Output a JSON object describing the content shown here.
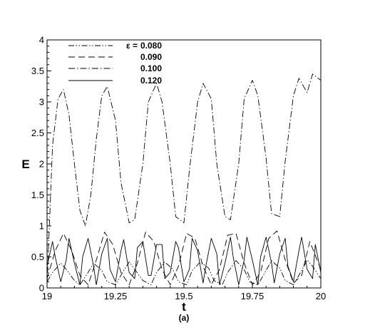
{
  "chart_data": {
    "type": "line",
    "title": "",
    "xlabel": "t",
    "ylabel": "E",
    "caption": "(a)",
    "xlim": [
      19,
      20
    ],
    "ylim": [
      0,
      4
    ],
    "xticks": [
      "19",
      "19.25",
      "19.5",
      "19.75",
      "20"
    ],
    "yticks": [
      "0",
      "0.5",
      "1",
      "1.5",
      "2",
      "2.5",
      "3",
      "3.5",
      "4"
    ],
    "legend_position": "top-left",
    "legend_symbol": "ε =",
    "grid": false,
    "series": [
      {
        "name": "0.080",
        "style": "dash-dot-dot",
        "x": [
          19.0,
          19.02,
          19.05,
          19.07,
          19.1,
          19.12,
          19.15,
          19.17,
          19.2,
          19.22,
          19.25,
          19.28,
          19.3,
          19.32,
          19.35,
          19.38,
          19.4,
          19.43,
          19.46,
          19.48,
          19.51,
          19.53,
          19.56,
          19.59,
          19.61,
          19.64,
          19.66,
          19.69,
          19.72,
          19.74,
          19.77,
          19.8,
          19.82,
          19.85,
          19.87,
          19.9,
          19.93,
          19.95,
          19.97,
          20.0
        ],
        "y": [
          0.1,
          0.25,
          0.4,
          0.3,
          0.12,
          0.05,
          0.25,
          0.4,
          0.28,
          0.1,
          0.05,
          0.28,
          0.42,
          0.3,
          0.12,
          0.05,
          0.25,
          0.42,
          0.3,
          0.1,
          0.05,
          0.28,
          0.42,
          0.32,
          0.12,
          0.05,
          0.25,
          0.44,
          0.3,
          0.1,
          0.05,
          0.28,
          0.44,
          0.32,
          0.12,
          0.05,
          0.28,
          0.45,
          0.35,
          0.15
        ]
      },
      {
        "name": "0.090",
        "style": "dash",
        "x": [
          19.0,
          19.03,
          19.06,
          19.09,
          19.12,
          19.15,
          19.18,
          19.21,
          19.24,
          19.27,
          19.3,
          19.33,
          19.36,
          19.39,
          19.42,
          19.45,
          19.48,
          19.51,
          19.54,
          19.57,
          19.6,
          19.63,
          19.66,
          19.69,
          19.72,
          19.75,
          19.78,
          19.81,
          19.84,
          19.87,
          19.9,
          19.93,
          19.96,
          20.0
        ],
        "y": [
          0.15,
          0.6,
          0.88,
          0.6,
          0.2,
          0.05,
          0.45,
          0.9,
          0.7,
          0.25,
          0.05,
          0.4,
          0.9,
          0.75,
          0.3,
          0.05,
          0.35,
          0.88,
          0.8,
          0.35,
          0.05,
          0.3,
          0.85,
          0.88,
          0.4,
          0.05,
          0.25,
          0.8,
          0.92,
          0.45,
          0.08,
          0.2,
          0.75,
          0.3
        ]
      },
      {
        "name": "0.100",
        "style": "dash-dot",
        "x": [
          19.0,
          19.02,
          19.04,
          19.06,
          19.08,
          19.1,
          19.12,
          19.14,
          19.16,
          19.18,
          19.2,
          19.22,
          19.25,
          19.27,
          19.3,
          19.32,
          19.35,
          19.37,
          19.4,
          19.42,
          19.45,
          19.47,
          19.5,
          19.52,
          19.55,
          19.57,
          19.6,
          19.62,
          19.65,
          19.67,
          19.7,
          19.72,
          19.75,
          19.77,
          19.8,
          19.82,
          19.85,
          19.87,
          19.9,
          19.92,
          19.95,
          19.97,
          20.0
        ],
        "y": [
          0.05,
          2.3,
          3.05,
          3.2,
          2.8,
          2.0,
          1.25,
          1.0,
          1.5,
          2.4,
          3.1,
          3.25,
          2.7,
          1.7,
          1.05,
          1.1,
          2.0,
          3.0,
          3.3,
          3.0,
          2.0,
          1.15,
          1.05,
          1.9,
          3.0,
          3.3,
          3.05,
          2.0,
          1.15,
          1.1,
          2.0,
          3.05,
          3.35,
          3.1,
          2.1,
          1.2,
          1.15,
          2.05,
          3.1,
          3.38,
          3.15,
          3.45,
          3.35
        ]
      },
      {
        "name": "0.120",
        "style": "solid",
        "x": [
          19.0,
          19.02,
          19.03,
          19.05,
          19.07,
          19.08,
          19.1,
          19.12,
          19.13,
          19.15,
          19.17,
          19.18,
          19.2,
          19.22,
          19.23,
          19.25,
          19.27,
          19.28,
          19.3,
          19.32,
          19.33,
          19.35,
          19.37,
          19.38,
          19.4,
          19.42,
          19.43,
          19.45,
          19.47,
          19.48,
          19.5,
          19.52,
          19.53,
          19.55,
          19.57,
          19.58,
          19.6,
          19.62,
          19.63,
          19.65,
          19.67,
          19.68,
          19.7,
          19.72,
          19.73,
          19.75,
          19.77,
          19.78,
          19.8,
          19.82,
          19.83,
          19.85,
          19.87,
          19.88,
          19.9,
          19.92,
          19.93,
          19.95,
          19.97,
          19.98,
          20.0
        ],
        "y": [
          0.35,
          0.75,
          0.5,
          0.1,
          0.45,
          0.8,
          0.4,
          0.05,
          0.5,
          0.8,
          0.35,
          0.05,
          0.55,
          0.8,
          0.3,
          0.1,
          0.6,
          0.78,
          0.25,
          0.15,
          0.65,
          0.75,
          0.2,
          0.2,
          0.7,
          0.7,
          0.15,
          0.25,
          0.75,
          0.65,
          0.1,
          0.3,
          0.8,
          0.6,
          0.08,
          0.35,
          0.8,
          0.55,
          0.05,
          0.4,
          0.82,
          0.5,
          0.05,
          0.45,
          0.82,
          0.45,
          0.05,
          0.5,
          0.82,
          0.4,
          0.08,
          0.55,
          0.8,
          0.35,
          0.1,
          0.6,
          0.82,
          0.3,
          0.15,
          0.7,
          0.25
        ]
      }
    ]
  }
}
